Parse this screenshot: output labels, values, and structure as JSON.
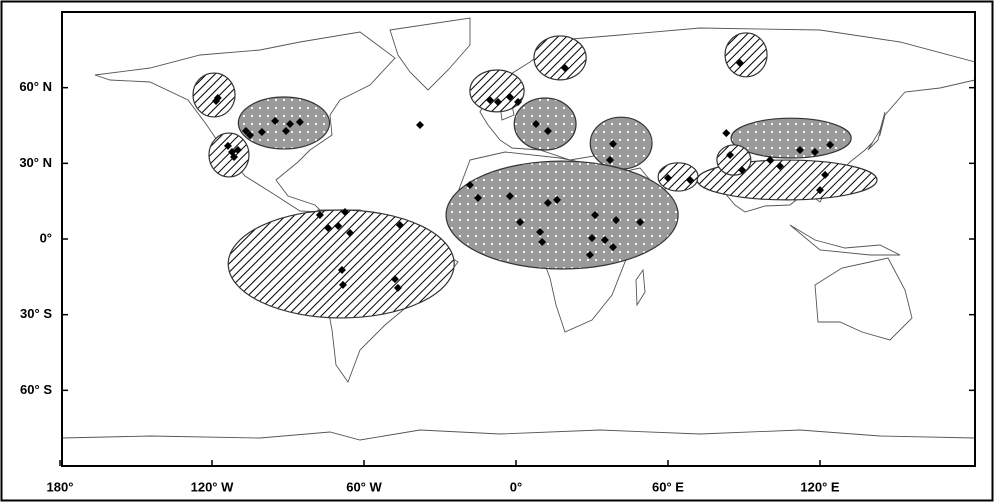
{
  "map": {
    "type": "scatter-map",
    "xlim": [
      -180,
      180
    ],
    "ylim": [
      -90,
      90
    ],
    "xticks": [
      {
        "value": -180,
        "label": "180°"
      },
      {
        "value": -120,
        "label": "120° W"
      },
      {
        "value": -60,
        "label": "60° W"
      },
      {
        "value": 0,
        "label": "0°"
      },
      {
        "value": 60,
        "label": "60° E"
      },
      {
        "value": 120,
        "label": "120° E"
      }
    ],
    "yticks": [
      {
        "value": 60,
        "label": "60° N"
      },
      {
        "value": 30,
        "label": "30° N"
      },
      {
        "value": 0,
        "label": "0°"
      },
      {
        "value": -30,
        "label": "30° S"
      },
      {
        "value": -60,
        "label": "60° S"
      }
    ],
    "regions": [
      {
        "lon": -119.2,
        "lat": 57.1,
        "rx": 8.3,
        "ry": 8.7,
        "pattern": "hatch"
      },
      {
        "lon": -91.6,
        "lat": 46,
        "rx": 18,
        "ry": 10.3,
        "pattern": "dots"
      },
      {
        "lon": -113.3,
        "lat": 33.3,
        "rx": 7.9,
        "ry": 8.7,
        "pattern": "hatch"
      },
      {
        "lon": -69,
        "lat": -9.9,
        "rx": 44.6,
        "ry": 21.4,
        "pattern": "hatch"
      },
      {
        "lon": -7.5,
        "lat": 58.7,
        "rx": 10.7,
        "ry": 8.3,
        "pattern": "hatch"
      },
      {
        "lon": 17.4,
        "lat": 71.8,
        "rx": 10.3,
        "ry": 8.7,
        "pattern": "hatch"
      },
      {
        "lon": 11.5,
        "lat": 45.6,
        "rx": 12.2,
        "ry": 10.3,
        "pattern": "dots"
      },
      {
        "lon": 90.8,
        "lat": 73,
        "rx": 8.3,
        "ry": 8.7,
        "pattern": "hatch"
      },
      {
        "lon": 41.5,
        "lat": 38,
        "rx": 12.2,
        "ry": 10.3,
        "pattern": "dots"
      },
      {
        "lon": 18.2,
        "lat": 9.5,
        "rx": 45.8,
        "ry": 21.4,
        "pattern": "dots"
      },
      {
        "lon": 64,
        "lat": 24.6,
        "rx": 7.9,
        "ry": 5.6,
        "pattern": "hatch"
      },
      {
        "lon": 108.6,
        "lat": 40,
        "rx": 23.7,
        "ry": 7.9,
        "pattern": "dots"
      },
      {
        "lon": 107,
        "lat": 23.4,
        "rx": 35.5,
        "ry": 7.9,
        "pattern": "hatch"
      },
      {
        "lon": 86,
        "lat": 31.3,
        "rx": 6.7,
        "ry": 6,
        "pattern": "hatch"
      }
    ],
    "points": {
      "lon": [
        -118.4,
        -117.7,
        -95.1,
        -89.2,
        -85.3,
        -90.8,
        -100.3,
        -105.0,
        -106.6,
        -113.7,
        -112.1,
        -109.8,
        -111.3,
        -37.9,
        -77.4,
        -74.2,
        -70.2,
        -67.5,
        -65.5,
        -68.7,
        -68.3,
        -47.8,
        -46.6,
        -45.8,
        -10.3,
        -7.1,
        -2.4,
        0.8,
        19.3,
        7.9,
        12.6,
        88.4,
        38.3,
        37.1,
        -18.2,
        -15.0,
        -2.4,
        12.6,
        16.2,
        1.6,
        9.5,
        10.3,
        31.2,
        39.5,
        30.0,
        35.1,
        29.2,
        38.3,
        49.0,
        60.0,
        68.7,
        84.5,
        83.0,
        89.2,
        100.3,
        104.2,
        112.1,
        118.0,
        124.0,
        122.0,
        120.0
      ],
      "lat": [
        54.7,
        55.9,
        46.8,
        45.6,
        46.4,
        42.8,
        42.4,
        41.2,
        42.8,
        36.9,
        34.5,
        35.3,
        32.5,
        45.2,
        9.5,
        4.4,
        5.2,
        10.7,
        2.4,
        -12.3,
        -18.2,
        -15.9,
        -19.4,
        5.5,
        55.1,
        54.3,
        56.3,
        54.3,
        67.8,
        45.6,
        42.8,
        69.8,
        37.7,
        31.3,
        21.4,
        16.3,
        17.0,
        14.3,
        15.5,
        6.7,
        2.8,
        -1.2,
        9.5,
        7.5,
        0.4,
        -0.4,
        -6.3,
        -3.2,
        6.7,
        24.2,
        23.4,
        33.3,
        42.0,
        27.4,
        31.3,
        28.9,
        35.3,
        34.5,
        37.3,
        25.4,
        19.4
      ]
    }
  }
}
